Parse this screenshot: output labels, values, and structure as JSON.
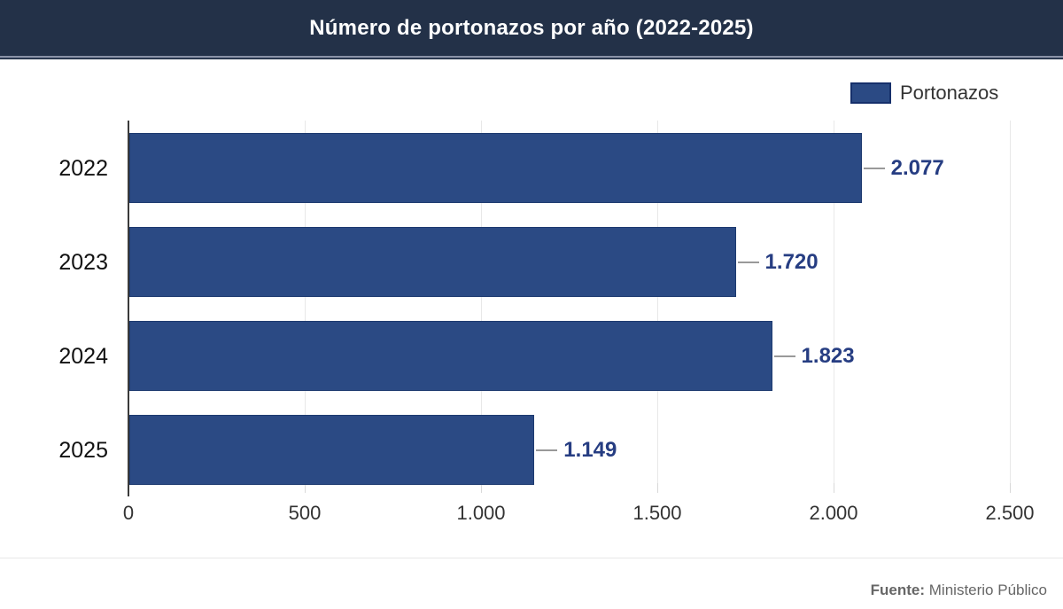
{
  "header": {
    "title": "Número de portonazos por año (2022-2025)"
  },
  "legend": {
    "label": "Portonazos"
  },
  "footer": {
    "source_label": "Fuente:",
    "source_value": " Ministerio Público"
  },
  "colors": {
    "header_bg": "#233148",
    "bar_fill": "#2b4a84",
    "bar_border": "#1d3a6f",
    "value_label": "#263d82",
    "connector": "#999999",
    "gridline": "#e8e8e8",
    "axis_line": "#3a3a3a",
    "tick_label": "#333333",
    "footer_text": "#666666"
  },
  "chart_data": {
    "type": "bar",
    "orientation": "horizontal",
    "title": "Número de portonazos por año (2022-2025)",
    "categories": [
      "2022",
      "2023",
      "2024",
      "2025"
    ],
    "values": [
      2077,
      1720,
      1823,
      1149
    ],
    "value_labels": [
      "2.077",
      "1.720",
      "1.823",
      "1.149"
    ],
    "series_name": "Portonazos",
    "xlabel": "",
    "ylabel": "",
    "xlim": [
      0,
      2500
    ],
    "xticks": [
      0,
      500,
      1000,
      1500,
      2000,
      2500
    ],
    "xtick_labels": [
      "0",
      "500",
      "1.000",
      "1.500",
      "2.000",
      "2.500"
    ],
    "grid": "vertical",
    "legend_position": "top-right",
    "source": "Ministerio Público"
  }
}
